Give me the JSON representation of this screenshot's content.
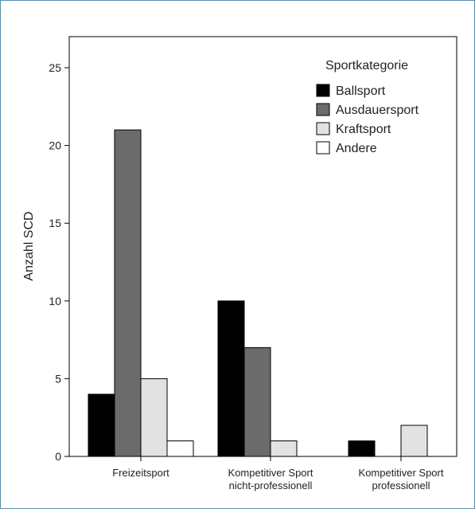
{
  "chart_data": {
    "type": "bar",
    "ylabel": "Anzahl SCD",
    "ylim": [
      0,
      27
    ],
    "yticks": [
      0,
      5,
      10,
      15,
      20,
      25
    ],
    "categories": [
      [
        "Freizeitsport"
      ],
      [
        "Kompetitiver Sport",
        "nicht-professionell"
      ],
      [
        "Kompetitiver Sport",
        "professionell"
      ]
    ],
    "legend_title": "Sportkategorie",
    "legend_position": "top-right",
    "grid": false,
    "series": [
      {
        "name": "Ballsport",
        "color": "#000000",
        "values": [
          4,
          10,
          1
        ]
      },
      {
        "name": "Ausdauersport",
        "color": "#6b6b6b",
        "values": [
          21,
          7,
          0
        ]
      },
      {
        "name": "Kraftsport",
        "color": "#e2e2e2",
        "values": [
          5,
          1,
          2
        ]
      },
      {
        "name": "Andere",
        "color": "#ffffff",
        "values": [
          1,
          0,
          0
        ]
      }
    ]
  }
}
